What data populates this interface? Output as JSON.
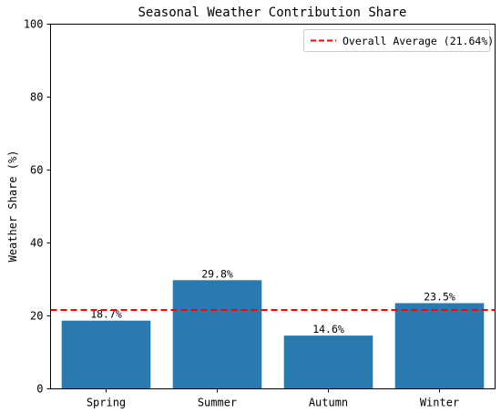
{
  "chart_data": {
    "type": "bar",
    "title": "Seasonal Weather Contribution Share",
    "xlabel": "",
    "ylabel": "Weather Share (%)",
    "categories": [
      "Spring",
      "Summer",
      "Autumn",
      "Winter"
    ],
    "values": [
      18.7,
      29.8,
      14.6,
      23.5
    ],
    "data_labels": [
      "18.7%",
      "29.8%",
      "14.6%",
      "23.5%"
    ],
    "ylim": [
      0,
      100
    ],
    "yticks": [
      0,
      20,
      40,
      60,
      80,
      100
    ],
    "grid": false,
    "bar_color": "#2a7ab0",
    "reference_line": {
      "value": 21.64,
      "label": "Overall Average (21.64%)",
      "color": "#ff0000",
      "style": "dashed"
    },
    "legend": {
      "placement": "top-right"
    }
  }
}
